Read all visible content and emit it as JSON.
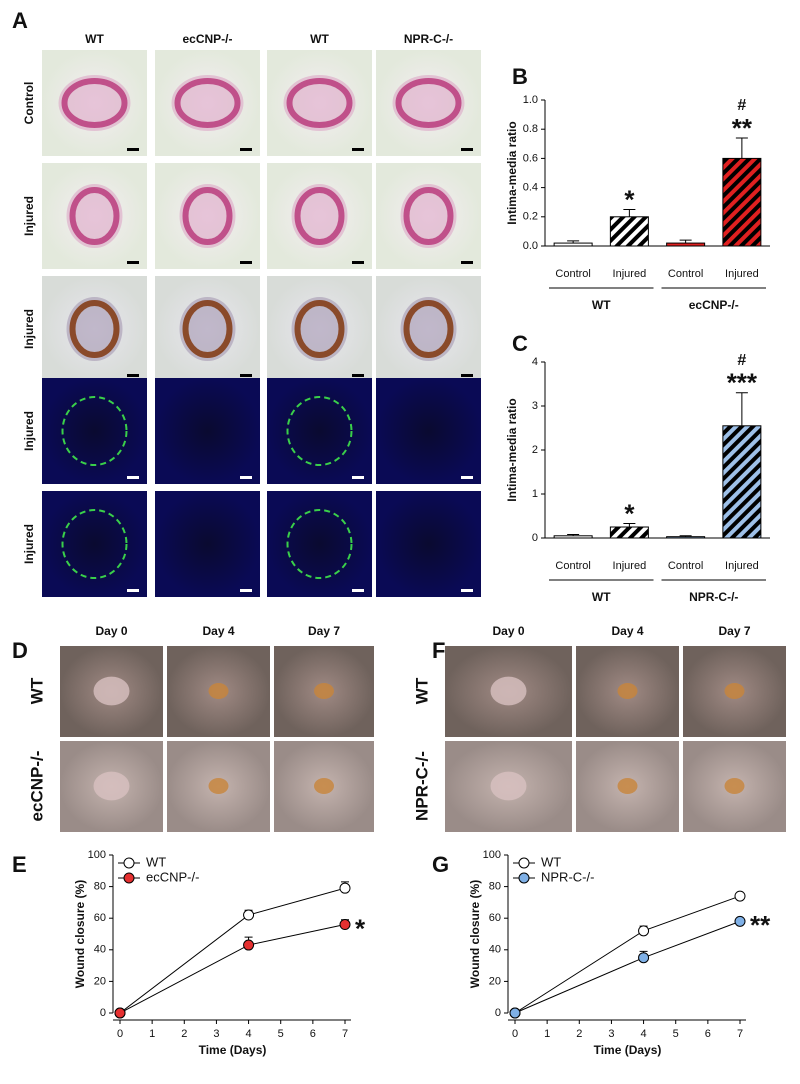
{
  "figure": {
    "panel_labels": [
      "A",
      "B",
      "C",
      "D",
      "E",
      "F",
      "G"
    ],
    "A": {
      "columns": [
        "WT",
        "ecCNP-/-",
        "WT",
        "NPR-C-/-"
      ],
      "rows": [
        "Control",
        "Injured",
        "Injured",
        "Injured",
        "Injured"
      ]
    },
    "D": {
      "columns": [
        "Day 0",
        "Day 4",
        "Day 7"
      ],
      "rows": [
        "WT",
        "ecCNP-/-"
      ]
    },
    "F": {
      "columns": [
        "Day 0",
        "Day 4",
        "Day 7"
      ],
      "rows": [
        "WT",
        "NPR-C-/-"
      ]
    }
  },
  "chart_data": [
    {
      "type": "bar",
      "ylabel": "Intima-media ratio",
      "categories": [
        "Control",
        "Injured",
        "Control",
        "Injured"
      ],
      "groups": [
        "WT",
        "ecCNP-/-"
      ],
      "values": [
        0.02,
        0.2,
        0.02,
        0.6
      ],
      "errors": [
        0.015,
        0.05,
        0.02,
        0.14
      ],
      "colors": [
        "#ffffff",
        "#ffffff",
        "#e02020",
        "#e02020"
      ],
      "hatch": [
        false,
        true,
        false,
        true
      ],
      "annotations": [
        "*",
        "**",
        "#"
      ],
      "ylim": [
        0,
        1
      ],
      "yticks": [
        {
          "value": 0,
          "label": "0.0"
        },
        {
          "value": 0.2,
          "label": "0.2"
        },
        {
          "value": 0.4,
          "label": "0.4"
        },
        {
          "value": 0.6,
          "label": "0.6"
        },
        {
          "value": 0.8,
          "label": "0.8"
        },
        {
          "value": 1,
          "label": "1.0"
        }
      ]
    },
    {
      "type": "bar",
      "ylabel": "Intima-media ratio",
      "categories": [
        "Control",
        "Injured",
        "Control",
        "Injured"
      ],
      "groups": [
        "WT",
        "NPR-C-/-"
      ],
      "values": [
        0.05,
        0.25,
        0.03,
        2.55
      ],
      "errors": [
        0.03,
        0.08,
        0.02,
        0.75
      ],
      "colors": [
        "#ffffff",
        "#ffffff",
        "#9ec0e8",
        "#9ec0e8"
      ],
      "hatch": [
        false,
        true,
        false,
        true
      ],
      "annotations": [
        "*",
        "***",
        "#"
      ],
      "ylim": [
        0,
        4
      ],
      "yticks": [
        0,
        1,
        2,
        3,
        4
      ]
    },
    {
      "type": "line",
      "xlabel": "Time (Days)",
      "ylabel": "Wound closure (%)",
      "x": [
        0,
        4,
        7
      ],
      "series": [
        {
          "name": "WT",
          "color": "#ffffff",
          "values": [
            0,
            62,
            79
          ],
          "errors": [
            0,
            3,
            4
          ]
        },
        {
          "name": "ecCNP-/-",
          "color": "#e53030",
          "values": [
            0,
            43,
            56
          ],
          "errors": [
            0,
            5,
            3
          ]
        }
      ],
      "annotations": [
        "*"
      ],
      "xlim": [
        0,
        7
      ],
      "xticks": [
        0,
        1,
        2,
        3,
        4,
        5,
        6,
        7
      ],
      "ylim": [
        0,
        100
      ],
      "yticks": [
        0,
        20,
        40,
        60,
        80,
        100
      ]
    },
    {
      "type": "line",
      "xlabel": "Time (Days)",
      "ylabel": "Wound closure (%)",
      "x": [
        0,
        4,
        7
      ],
      "series": [
        {
          "name": "WT",
          "color": "#ffffff",
          "values": [
            0,
            52,
            74
          ],
          "errors": [
            0,
            3,
            0
          ]
        },
        {
          "name": "NPR-C-/-",
          "color": "#7fb0e6",
          "values": [
            0,
            35,
            58
          ],
          "errors": [
            0,
            4,
            0
          ]
        }
      ],
      "annotations": [
        "**"
      ],
      "xlim": [
        0,
        7
      ],
      "xticks": [
        0,
        1,
        2,
        3,
        4,
        5,
        6,
        7
      ],
      "ylim": [
        0,
        100
      ],
      "yticks": [
        0,
        20,
        40,
        60,
        80,
        100
      ]
    }
  ]
}
